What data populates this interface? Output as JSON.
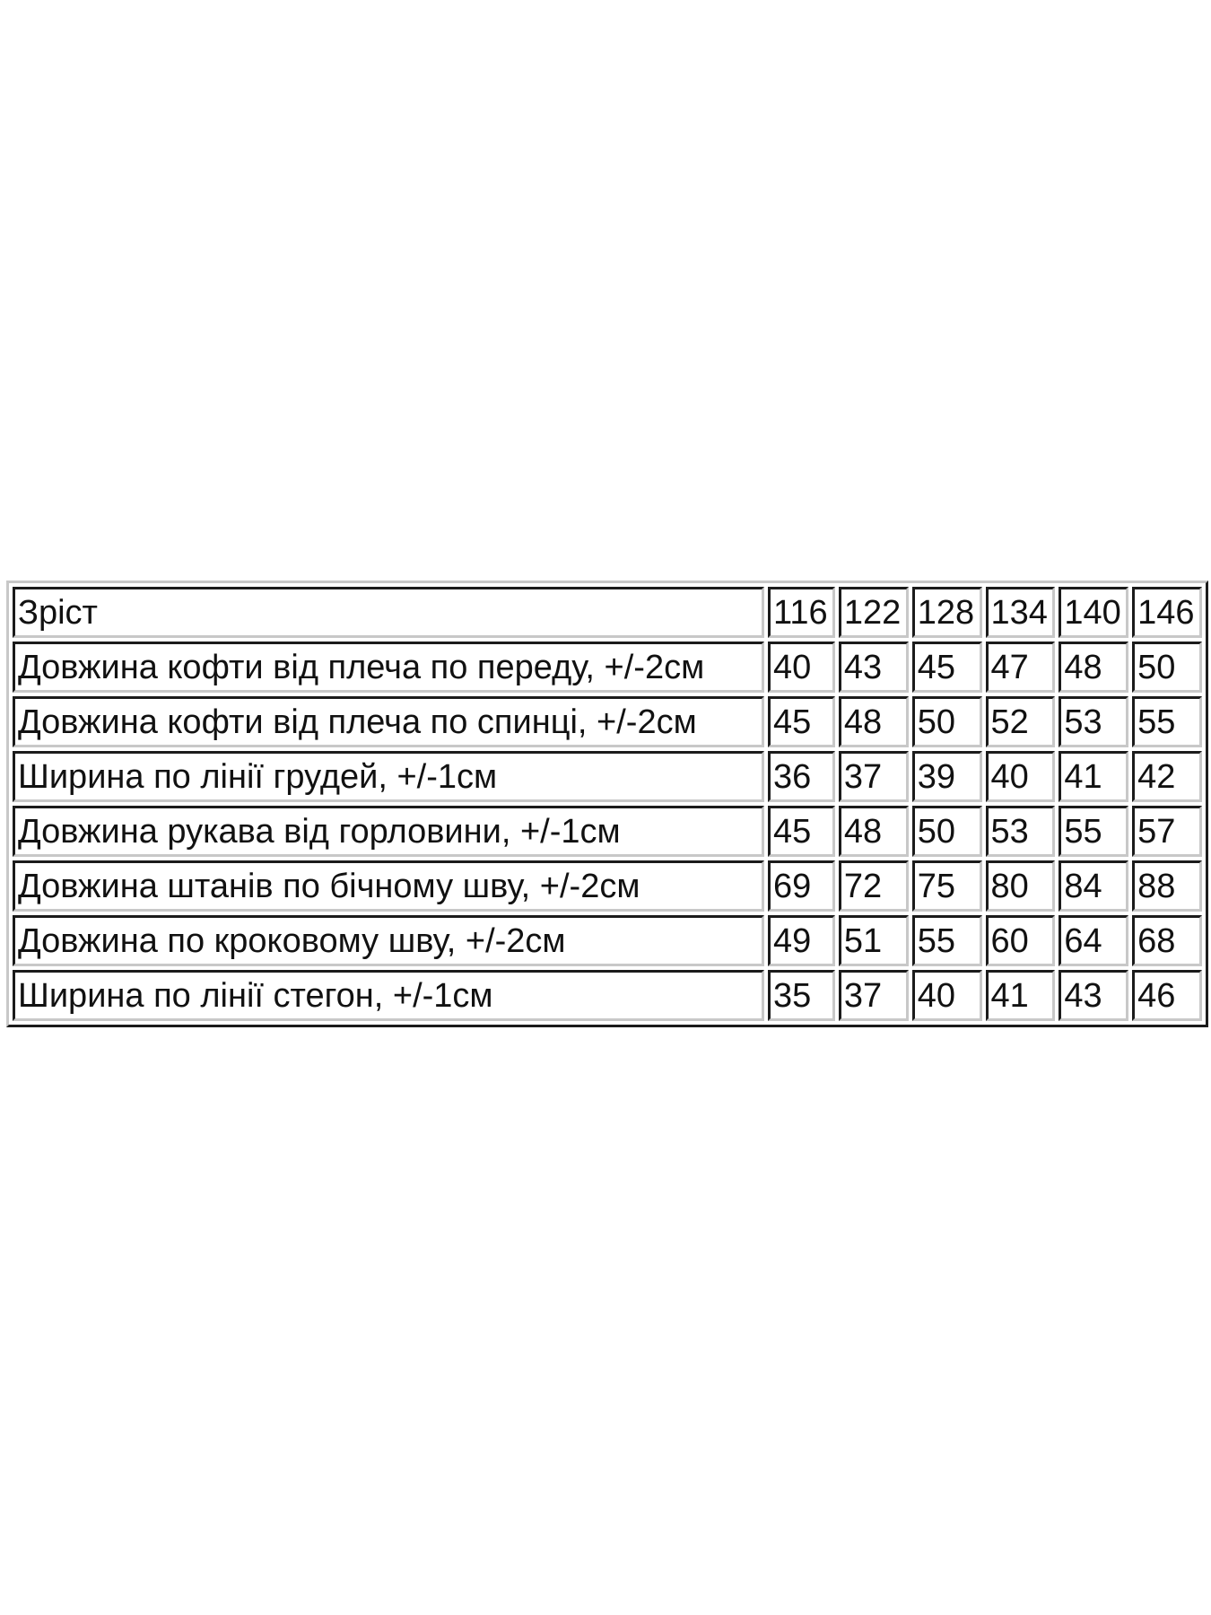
{
  "header": {
    "label": "Зріст",
    "sizes": [
      "116",
      "122",
      "128",
      "134",
      "140",
      "146"
    ]
  },
  "rows": [
    {
      "label": "Довжина кофти від плеча по переду, +/-2см",
      "values": [
        "40",
        "43",
        "45",
        "47",
        "48",
        "50"
      ]
    },
    {
      "label": "Довжина кофти від плеча по спинці, +/-2см",
      "values": [
        "45",
        "48",
        "50",
        "52",
        "53",
        "55"
      ]
    },
    {
      "label": "Ширина по лінії грудей, +/-1см",
      "values": [
        "36",
        "37",
        "39",
        "40",
        "41",
        "42"
      ]
    },
    {
      "label": "Довжина рукава від горловини, +/-1см",
      "values": [
        "45",
        "48",
        "50",
        "53",
        "55",
        "57"
      ]
    },
    {
      "label": "Довжина штанів по бічному шву, +/-2см",
      "values": [
        "69",
        "72",
        "75",
        "80",
        "84",
        "88"
      ]
    },
    {
      "label": "Довжина по кроковому шву, +/-2см",
      "values": [
        "49",
        "51",
        "55",
        "60",
        "64",
        "68"
      ]
    },
    {
      "label": "Ширина по лінії стегон, +/-1см",
      "values": [
        "35",
        "37",
        "40",
        "41",
        "43",
        "46"
      ]
    }
  ]
}
